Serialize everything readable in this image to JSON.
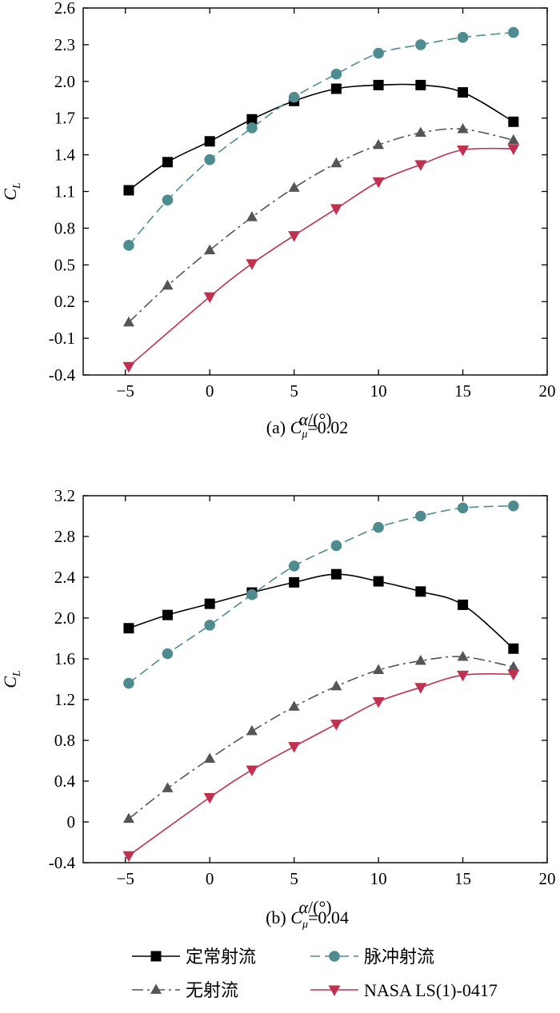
{
  "chart_data": [
    {
      "type": "line",
      "caption_prefix": "(a)",
      "caption_symbol": "C",
      "caption_sub": "μ",
      "caption_value": "=0.02",
      "ylabel": "C",
      "ylabel_sub": "L",
      "xlabel": "α/(°)",
      "xlim": [
        -7.5,
        20
      ],
      "ylim": [
        -0.4,
        2.6
      ],
      "xticks": [
        -5,
        0,
        5,
        10,
        15,
        20
      ],
      "xtick_labels": [
        "−5",
        "0",
        "5",
        "10",
        "15",
        "20"
      ],
      "yticks": [
        -0.4,
        -0.1,
        0.2,
        0.5,
        0.8,
        1.1,
        1.4,
        1.7,
        2.0,
        2.3,
        2.6
      ],
      "ytick_labels": [
        "-0.4",
        "-0.1",
        "0.2",
        "0.5",
        "0.8",
        "1.1",
        "1.4",
        "1.7",
        "2.0",
        "2.3",
        "2.6"
      ],
      "series": [
        {
          "name": "定常射流",
          "color": "#000000",
          "marker": "square",
          "dash": "",
          "x": [
            -4.8,
            -2.5,
            0,
            2.5,
            5,
            7.5,
            10,
            12.5,
            15,
            18
          ],
          "y": [
            1.11,
            1.34,
            1.51,
            1.69,
            1.84,
            1.94,
            1.97,
            1.97,
            1.91,
            1.67
          ]
        },
        {
          "name": "脉冲射流",
          "color": "#4f8c8f",
          "marker": "circle",
          "dash": "12,6",
          "x": [
            -4.8,
            -2.5,
            0,
            2.5,
            5,
            7.5,
            10,
            12.5,
            15,
            18
          ],
          "y": [
            0.66,
            1.03,
            1.36,
            1.62,
            1.87,
            2.06,
            2.23,
            2.3,
            2.36,
            2.4
          ]
        },
        {
          "name": "无射流",
          "color": "#555555",
          "marker": "triangle-up",
          "dash": "14,5,3,5",
          "x": [
            -4.8,
            -2.5,
            0,
            2.5,
            5,
            7.5,
            10,
            12.5,
            15,
            18
          ],
          "y": [
            0.03,
            0.33,
            0.62,
            0.89,
            1.13,
            1.33,
            1.48,
            1.58,
            1.61,
            1.52
          ]
        },
        {
          "name": "NASA LS(1)-0417",
          "color": "#c0304f",
          "marker": "triangle-down",
          "dash": "",
          "x": [
            -4.8,
            0,
            2.5,
            5,
            7.5,
            10,
            12.5,
            15,
            18
          ],
          "y": [
            -0.33,
            0.24,
            0.51,
            0.74,
            0.96,
            1.18,
            1.32,
            1.44,
            1.45
          ]
        }
      ]
    },
    {
      "type": "line",
      "caption_prefix": "(b)",
      "caption_symbol": "C",
      "caption_sub": "μ",
      "caption_value": "=0.04",
      "ylabel": "C",
      "ylabel_sub": "L",
      "xlabel": "α/(°)",
      "xlim": [
        -7.5,
        20
      ],
      "ylim": [
        -0.4,
        3.2
      ],
      "xticks": [
        -5,
        0,
        5,
        10,
        15,
        20
      ],
      "xtick_labels": [
        "−5",
        "0",
        "5",
        "10",
        "15",
        "20"
      ],
      "yticks": [
        -0.4,
        0,
        0.4,
        0.8,
        1.2,
        1.6,
        2.0,
        2.4,
        2.8,
        3.2
      ],
      "ytick_labels": [
        "-0.4",
        "0",
        "0.4",
        "0.8",
        "1.2",
        "1.6",
        "2.0",
        "2.4",
        "2.8",
        "3.2"
      ],
      "series": [
        {
          "name": "定常射流",
          "color": "#000000",
          "marker": "square",
          "dash": "",
          "x": [
            -4.8,
            -2.5,
            0,
            2.5,
            5,
            7.5,
            10,
            12.5,
            15,
            18
          ],
          "y": [
            1.9,
            2.03,
            2.14,
            2.25,
            2.35,
            2.43,
            2.36,
            2.26,
            2.13,
            1.7
          ]
        },
        {
          "name": "脉冲射流",
          "color": "#4f8c8f",
          "marker": "circle",
          "dash": "12,6",
          "x": [
            -4.8,
            -2.5,
            0,
            2.5,
            5,
            7.5,
            10,
            12.5,
            15,
            18
          ],
          "y": [
            1.36,
            1.65,
            1.93,
            2.23,
            2.51,
            2.71,
            2.89,
            3.0,
            3.08,
            3.1
          ]
        },
        {
          "name": "无射流",
          "color": "#555555",
          "marker": "triangle-up",
          "dash": "14,5,3,5",
          "x": [
            -4.8,
            -2.5,
            0,
            2.5,
            5,
            7.5,
            10,
            12.5,
            15,
            18
          ],
          "y": [
            0.03,
            0.33,
            0.62,
            0.89,
            1.13,
            1.33,
            1.49,
            1.58,
            1.62,
            1.52
          ]
        },
        {
          "name": "NASA LS(1)-0417",
          "color": "#c0304f",
          "marker": "triangle-down",
          "dash": "",
          "x": [
            -4.8,
            0,
            2.5,
            5,
            7.5,
            10,
            12.5,
            15,
            18
          ],
          "y": [
            -0.33,
            0.24,
            0.51,
            0.74,
            0.96,
            1.18,
            1.32,
            1.44,
            1.45
          ]
        }
      ]
    }
  ],
  "legend": {
    "items": [
      {
        "label": "定常射流",
        "color": "#000000",
        "marker": "square",
        "dash": ""
      },
      {
        "label": "脉冲射流",
        "color": "#4f8c8f",
        "marker": "circle",
        "dash": "12,6"
      },
      {
        "label": "无射流",
        "color": "#555555",
        "marker": "triangle-up",
        "dash": "14,5,3,5"
      },
      {
        "label": "NASA LS(1)-0417",
        "color": "#c0304f",
        "marker": "triangle-down",
        "dash": ""
      }
    ]
  }
}
